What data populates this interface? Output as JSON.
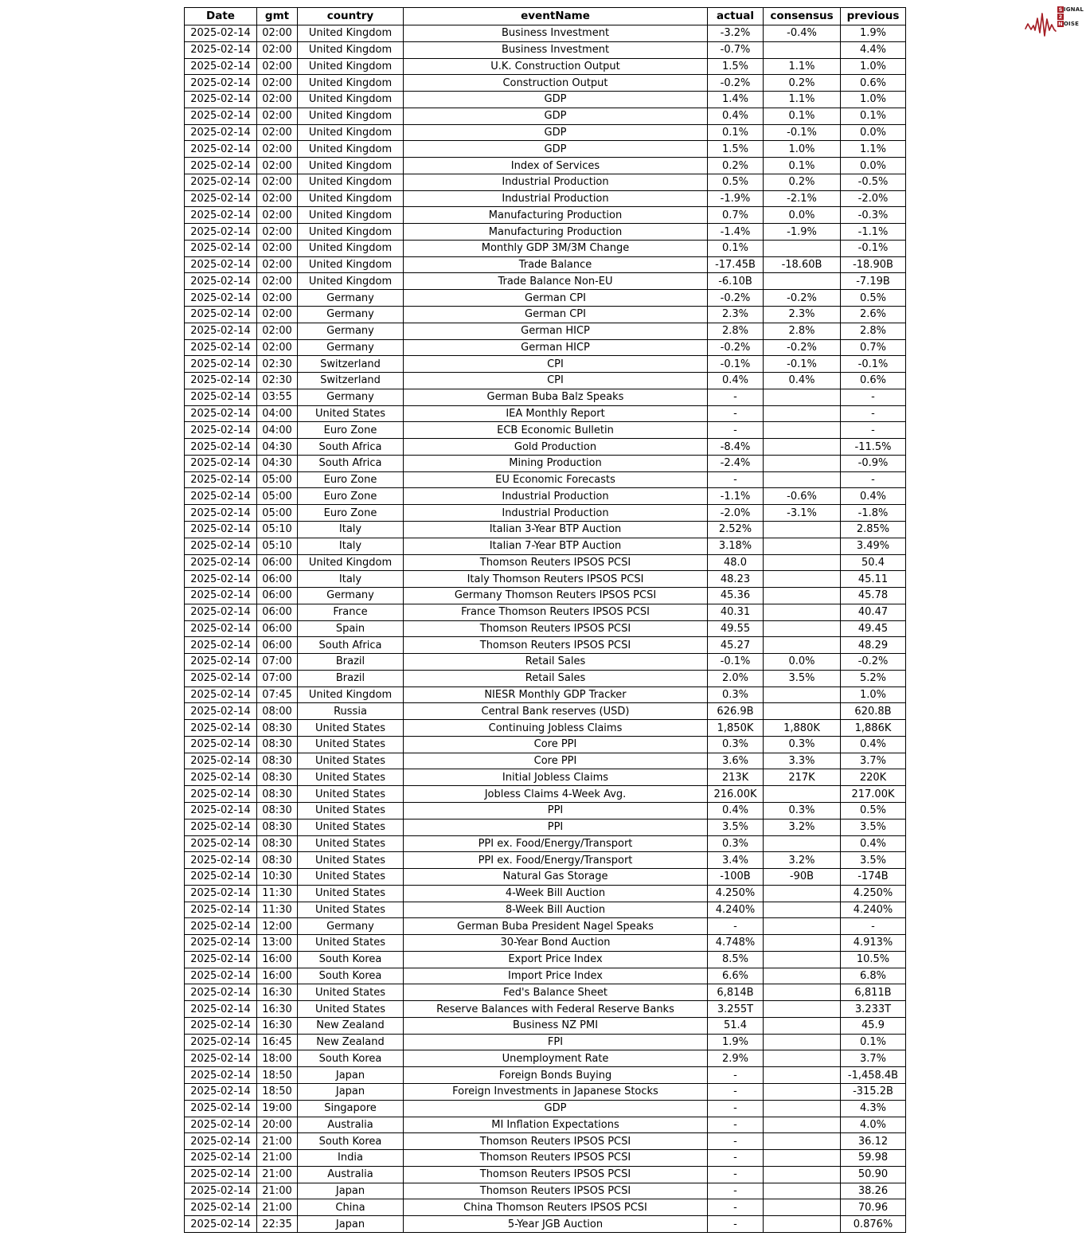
{
  "chart_data": {
    "type": "table",
    "columns": [
      "Date",
      "gmt",
      "country",
      "eventName",
      "actual",
      "consensus",
      "previous"
    ],
    "rows": [
      [
        "2025-02-14",
        "02:00",
        "United Kingdom",
        "Business Investment",
        "-3.2%",
        "-0.4%",
        "1.9%"
      ],
      [
        "2025-02-14",
        "02:00",
        "United Kingdom",
        "Business Investment",
        "-0.7%",
        "",
        "4.4%"
      ],
      [
        "2025-02-14",
        "02:00",
        "United Kingdom",
        "U.K. Construction Output",
        "1.5%",
        "1.1%",
        "1.0%"
      ],
      [
        "2025-02-14",
        "02:00",
        "United Kingdom",
        "Construction Output",
        "-0.2%",
        "0.2%",
        "0.6%"
      ],
      [
        "2025-02-14",
        "02:00",
        "United Kingdom",
        "GDP",
        "1.4%",
        "1.1%",
        "1.0%"
      ],
      [
        "2025-02-14",
        "02:00",
        "United Kingdom",
        "GDP",
        "0.4%",
        "0.1%",
        "0.1%"
      ],
      [
        "2025-02-14",
        "02:00",
        "United Kingdom",
        "GDP",
        "0.1%",
        "-0.1%",
        "0.0%"
      ],
      [
        "2025-02-14",
        "02:00",
        "United Kingdom",
        "GDP",
        "1.5%",
        "1.0%",
        "1.1%"
      ],
      [
        "2025-02-14",
        "02:00",
        "United Kingdom",
        "Index of Services",
        "0.2%",
        "0.1%",
        "0.0%"
      ],
      [
        "2025-02-14",
        "02:00",
        "United Kingdom",
        "Industrial Production",
        "0.5%",
        "0.2%",
        "-0.5%"
      ],
      [
        "2025-02-14",
        "02:00",
        "United Kingdom",
        "Industrial Production",
        "-1.9%",
        "-2.1%",
        "-2.0%"
      ],
      [
        "2025-02-14",
        "02:00",
        "United Kingdom",
        "Manufacturing Production",
        "0.7%",
        "0.0%",
        "-0.3%"
      ],
      [
        "2025-02-14",
        "02:00",
        "United Kingdom",
        "Manufacturing Production",
        "-1.4%",
        "-1.9%",
        "-1.1%"
      ],
      [
        "2025-02-14",
        "02:00",
        "United Kingdom",
        "Monthly GDP 3M/3M Change",
        "0.1%",
        "",
        "-0.1%"
      ],
      [
        "2025-02-14",
        "02:00",
        "United Kingdom",
        "Trade Balance",
        "-17.45B",
        "-18.60B",
        "-18.90B"
      ],
      [
        "2025-02-14",
        "02:00",
        "United Kingdom",
        "Trade Balance Non-EU",
        "-6.10B",
        "",
        "-7.19B"
      ],
      [
        "2025-02-14",
        "02:00",
        "Germany",
        "German CPI",
        "-0.2%",
        "-0.2%",
        "0.5%"
      ],
      [
        "2025-02-14",
        "02:00",
        "Germany",
        "German CPI",
        "2.3%",
        "2.3%",
        "2.6%"
      ],
      [
        "2025-02-14",
        "02:00",
        "Germany",
        "German HICP",
        "2.8%",
        "2.8%",
        "2.8%"
      ],
      [
        "2025-02-14",
        "02:00",
        "Germany",
        "German HICP",
        "-0.2%",
        "-0.2%",
        "0.7%"
      ],
      [
        "2025-02-14",
        "02:30",
        "Switzerland",
        "CPI",
        "-0.1%",
        "-0.1%",
        "-0.1%"
      ],
      [
        "2025-02-14",
        "02:30",
        "Switzerland",
        "CPI",
        "0.4%",
        "0.4%",
        "0.6%"
      ],
      [
        "2025-02-14",
        "03:55",
        "Germany",
        "German Buba Balz Speaks",
        "-",
        "",
        "-"
      ],
      [
        "2025-02-14",
        "04:00",
        "United States",
        "IEA Monthly Report",
        "-",
        "",
        "-"
      ],
      [
        "2025-02-14",
        "04:00",
        "Euro Zone",
        "ECB Economic Bulletin",
        "-",
        "",
        "-"
      ],
      [
        "2025-02-14",
        "04:30",
        "South Africa",
        "Gold Production",
        "-8.4%",
        "",
        "-11.5%"
      ],
      [
        "2025-02-14",
        "04:30",
        "South Africa",
        "Mining Production",
        "-2.4%",
        "",
        "-0.9%"
      ],
      [
        "2025-02-14",
        "05:00",
        "Euro Zone",
        "EU Economic Forecasts",
        "-",
        "",
        "-"
      ],
      [
        "2025-02-14",
        "05:00",
        "Euro Zone",
        "Industrial Production",
        "-1.1%",
        "-0.6%",
        "0.4%"
      ],
      [
        "2025-02-14",
        "05:00",
        "Euro Zone",
        "Industrial Production",
        "-2.0%",
        "-3.1%",
        "-1.8%"
      ],
      [
        "2025-02-14",
        "05:10",
        "Italy",
        "Italian 3-Year BTP Auction",
        "2.52%",
        "",
        "2.85%"
      ],
      [
        "2025-02-14",
        "05:10",
        "Italy",
        "Italian 7-Year BTP Auction",
        "3.18%",
        "",
        "3.49%"
      ],
      [
        "2025-02-14",
        "06:00",
        "United Kingdom",
        "Thomson Reuters IPSOS PCSI",
        "48.0",
        "",
        "50.4"
      ],
      [
        "2025-02-14",
        "06:00",
        "Italy",
        "Italy Thomson Reuters IPSOS PCSI",
        "48.23",
        "",
        "45.11"
      ],
      [
        "2025-02-14",
        "06:00",
        "Germany",
        "Germany Thomson Reuters IPSOS PCSI",
        "45.36",
        "",
        "45.78"
      ],
      [
        "2025-02-14",
        "06:00",
        "France",
        "France Thomson Reuters IPSOS PCSI",
        "40.31",
        "",
        "40.47"
      ],
      [
        "2025-02-14",
        "06:00",
        "Spain",
        "Thomson Reuters IPSOS PCSI",
        "49.55",
        "",
        "49.45"
      ],
      [
        "2025-02-14",
        "06:00",
        "South Africa",
        "Thomson Reuters IPSOS PCSI",
        "45.27",
        "",
        "48.29"
      ],
      [
        "2025-02-14",
        "07:00",
        "Brazil",
        "Retail Sales",
        "-0.1%",
        "0.0%",
        "-0.2%"
      ],
      [
        "2025-02-14",
        "07:00",
        "Brazil",
        "Retail Sales",
        "2.0%",
        "3.5%",
        "5.2%"
      ],
      [
        "2025-02-14",
        "07:45",
        "United Kingdom",
        "NIESR Monthly GDP Tracker",
        "0.3%",
        "",
        "1.0%"
      ],
      [
        "2025-02-14",
        "08:00",
        "Russia",
        "Central Bank reserves (USD)",
        "626.9B",
        "",
        "620.8B"
      ],
      [
        "2025-02-14",
        "08:30",
        "United States",
        "Continuing Jobless Claims",
        "1,850K",
        "1,880K",
        "1,886K"
      ],
      [
        "2025-02-14",
        "08:30",
        "United States",
        "Core PPI",
        "0.3%",
        "0.3%",
        "0.4%"
      ],
      [
        "2025-02-14",
        "08:30",
        "United States",
        "Core PPI",
        "3.6%",
        "3.3%",
        "3.7%"
      ],
      [
        "2025-02-14",
        "08:30",
        "United States",
        "Initial Jobless Claims",
        "213K",
        "217K",
        "220K"
      ],
      [
        "2025-02-14",
        "08:30",
        "United States",
        "Jobless Claims 4-Week Avg.",
        "216.00K",
        "",
        "217.00K"
      ],
      [
        "2025-02-14",
        "08:30",
        "United States",
        "PPI",
        "0.4%",
        "0.3%",
        "0.5%"
      ],
      [
        "2025-02-14",
        "08:30",
        "United States",
        "PPI",
        "3.5%",
        "3.2%",
        "3.5%"
      ],
      [
        "2025-02-14",
        "08:30",
        "United States",
        "PPI ex. Food/Energy/Transport",
        "0.3%",
        "",
        "0.4%"
      ],
      [
        "2025-02-14",
        "08:30",
        "United States",
        "PPI ex. Food/Energy/Transport",
        "3.4%",
        "3.2%",
        "3.5%"
      ],
      [
        "2025-02-14",
        "10:30",
        "United States",
        "Natural Gas Storage",
        "-100B",
        "-90B",
        "-174B"
      ],
      [
        "2025-02-14",
        "11:30",
        "United States",
        "4-Week Bill Auction",
        "4.250%",
        "",
        "4.250%"
      ],
      [
        "2025-02-14",
        "11:30",
        "United States",
        "8-Week Bill Auction",
        "4.240%",
        "",
        "4.240%"
      ],
      [
        "2025-02-14",
        "12:00",
        "Germany",
        "German Buba President Nagel Speaks",
        "-",
        "",
        "-"
      ],
      [
        "2025-02-14",
        "13:00",
        "United States",
        "30-Year Bond Auction",
        "4.748%",
        "",
        "4.913%"
      ],
      [
        "2025-02-14",
        "16:00",
        "South Korea",
        "Export Price Index",
        "8.5%",
        "",
        "10.5%"
      ],
      [
        "2025-02-14",
        "16:00",
        "South Korea",
        "Import Price Index",
        "6.6%",
        "",
        "6.8%"
      ],
      [
        "2025-02-14",
        "16:30",
        "United States",
        "Fed's Balance Sheet",
        "6,814B",
        "",
        "6,811B"
      ],
      [
        "2025-02-14",
        "16:30",
        "United States",
        "Reserve Balances with Federal Reserve Banks",
        "3.255T",
        "",
        "3.233T"
      ],
      [
        "2025-02-14",
        "16:30",
        "New Zealand",
        "Business NZ PMI",
        "51.4",
        "",
        "45.9"
      ],
      [
        "2025-02-14",
        "16:45",
        "New Zealand",
        "FPI",
        "1.9%",
        "",
        "0.1%"
      ],
      [
        "2025-02-14",
        "18:00",
        "South Korea",
        "Unemployment Rate",
        "2.9%",
        "",
        "3.7%"
      ],
      [
        "2025-02-14",
        "18:50",
        "Japan",
        "Foreign Bonds Buying",
        "-",
        "",
        "-1,458.4B"
      ],
      [
        "2025-02-14",
        "18:50",
        "Japan",
        "Foreign Investments in Japanese Stocks",
        "-",
        "",
        "-315.2B"
      ],
      [
        "2025-02-14",
        "19:00",
        "Singapore",
        "GDP",
        "-",
        "",
        "4.3%"
      ],
      [
        "2025-02-14",
        "20:00",
        "Australia",
        "MI Inflation Expectations",
        "-",
        "",
        "4.0%"
      ],
      [
        "2025-02-14",
        "21:00",
        "South Korea",
        "Thomson Reuters IPSOS PCSI",
        "-",
        "",
        "36.12"
      ],
      [
        "2025-02-14",
        "21:00",
        "India",
        "Thomson Reuters IPSOS PCSI",
        "-",
        "",
        "59.98"
      ],
      [
        "2025-02-14",
        "21:00",
        "Australia",
        "Thomson Reuters IPSOS PCSI",
        "-",
        "",
        "50.90"
      ],
      [
        "2025-02-14",
        "21:00",
        "Japan",
        "Thomson Reuters IPSOS PCSI",
        "-",
        "",
        "38.26"
      ],
      [
        "2025-02-14",
        "21:00",
        "China",
        "China Thomson Reuters IPSOS PCSI",
        "-",
        "",
        "70.96"
      ],
      [
        "2025-02-14",
        "22:35",
        "Japan",
        "5-Year JGB Auction",
        "-",
        "",
        "0.876%"
      ]
    ]
  },
  "logo": {
    "line1_initial": "S",
    "line1_rest": "IGNAL",
    "line2_initial": "2",
    "line3_initial": "N",
    "line3_rest": "OISE",
    "accent_color": "#a51e25"
  }
}
